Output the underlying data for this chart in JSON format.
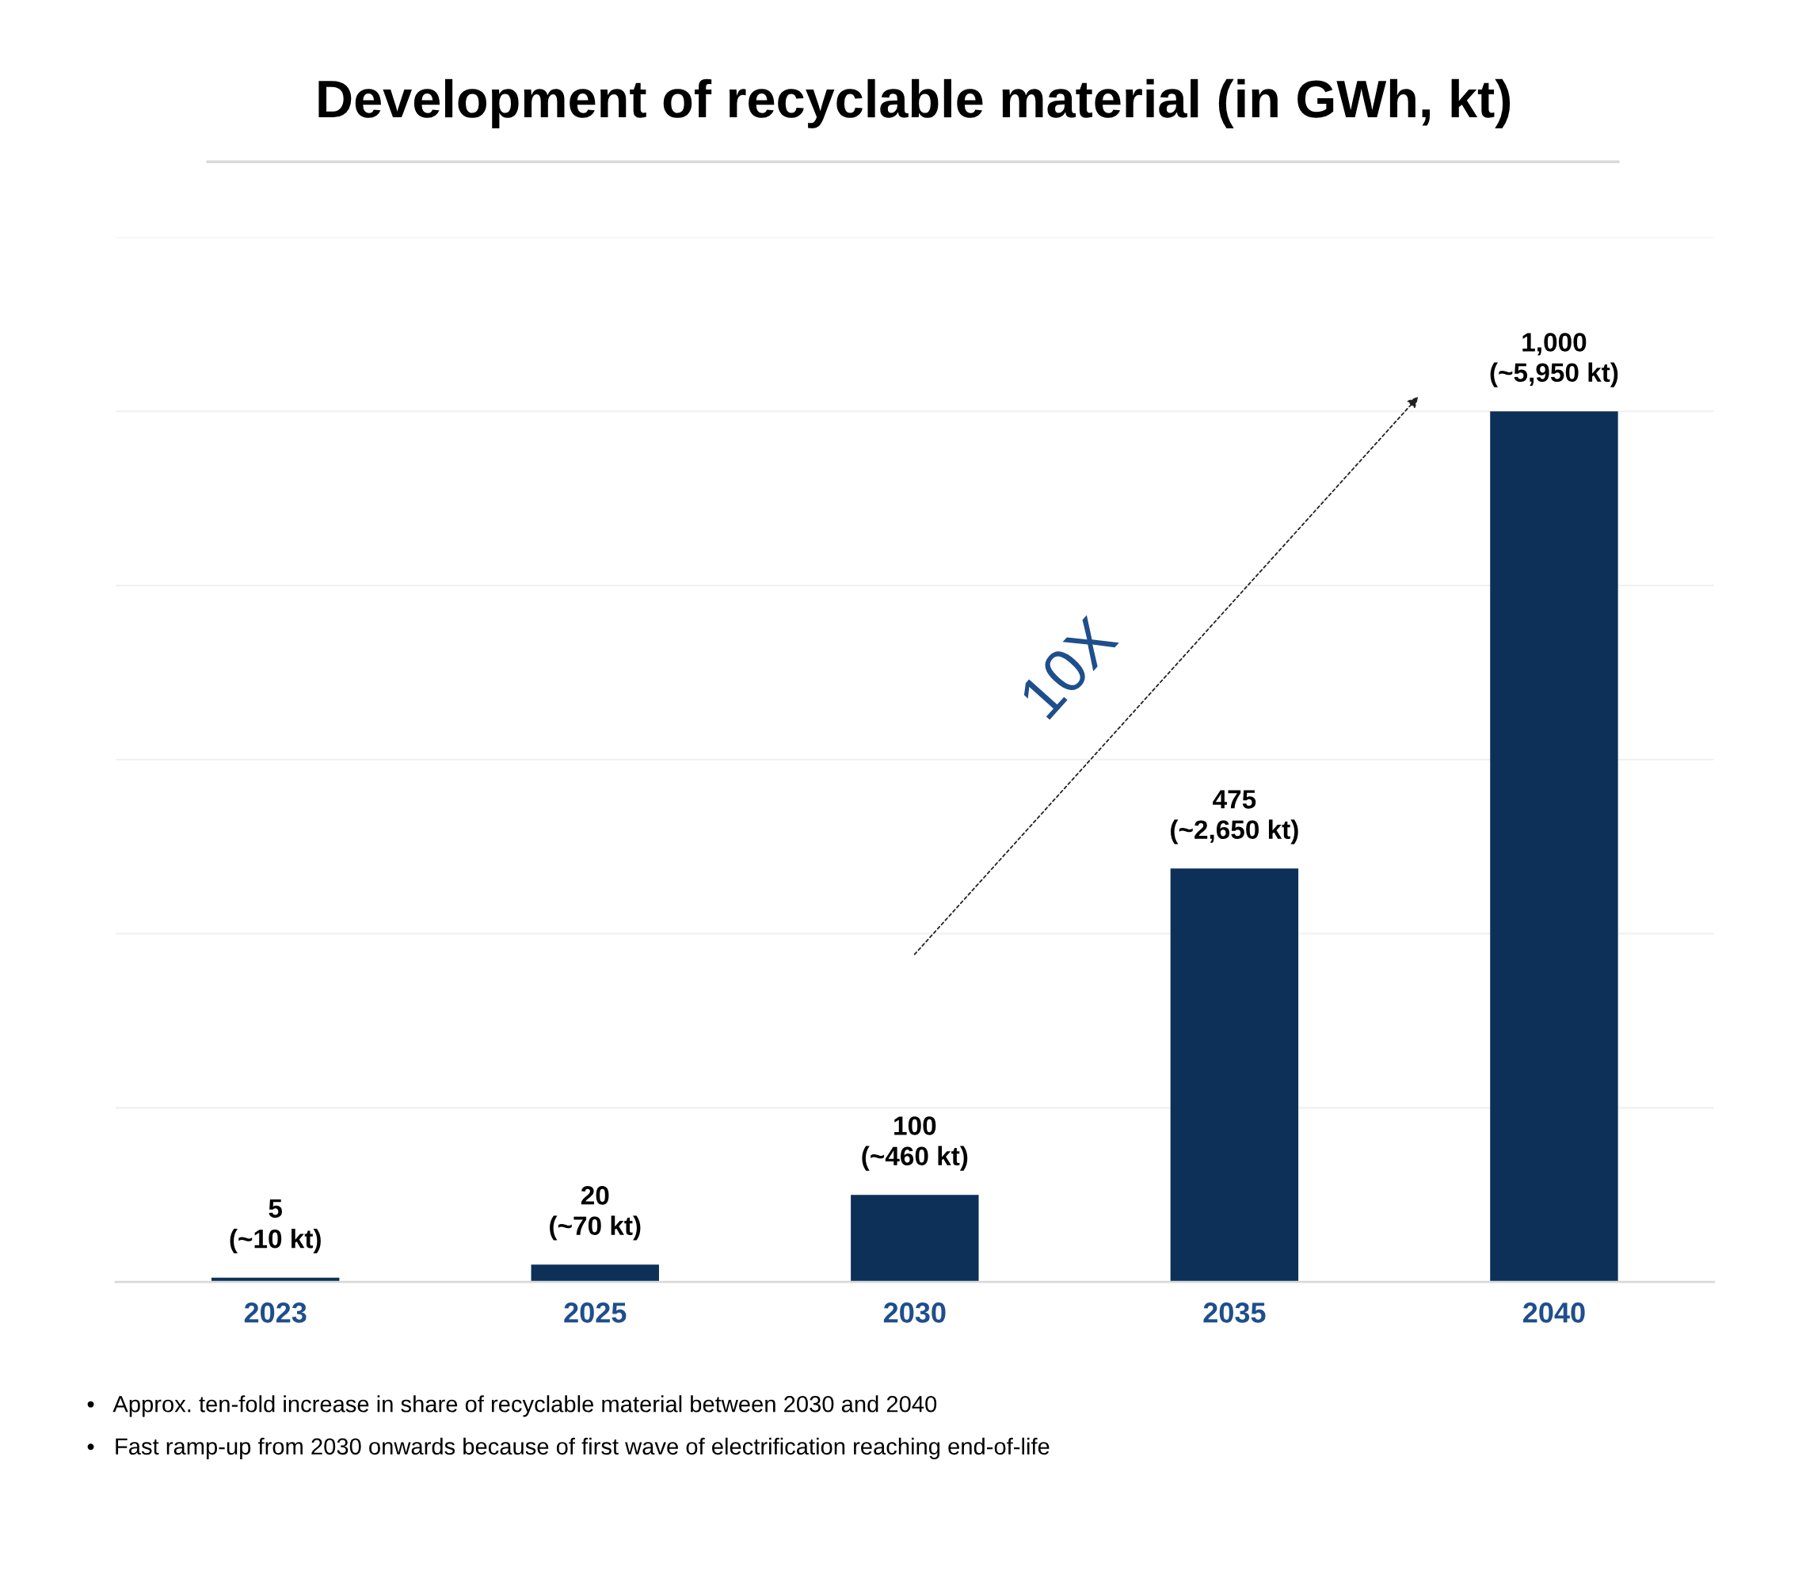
{
  "chart_data": {
    "type": "bar",
    "title": "Development of recyclable material (in GWh, kt)",
    "categories": [
      "2023",
      "2025",
      "2030",
      "2035",
      "2040"
    ],
    "values": [
      5,
      20,
      100,
      475,
      1000
    ],
    "value_labels": [
      "5\n(~10 kt)",
      "20\n(~70 kt)",
      "100\n(~460 kt)",
      "475\n(~2,650 kt)",
      "1,000\n(~5,950 kt)"
    ],
    "color": "#0d3059",
    "ylim": [
      0,
      1200
    ],
    "yticks": [
      {
        "value": 0,
        "label": null
      },
      {
        "value": 200,
        "label": null
      },
      {
        "value": 400,
        "label": null
      },
      {
        "value": 600,
        "label": null
      },
      {
        "value": 800,
        "label": null
      },
      {
        "value": 1000,
        "label": null
      },
      {
        "value": 1200,
        "label": null
      }
    ],
    "tick_labels": "x",
    "grid": "y",
    "annotations": [
      "10X",
      "•   Approx. ten-fold increase in share of recyclable material between 2030 and 2040",
      "•   Fast ramp-up from 2030 onwards because of first wave of electrification reaching end-of-life"
    ]
  }
}
